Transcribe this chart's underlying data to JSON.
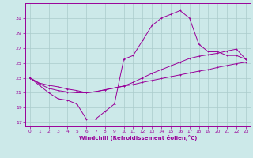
{
  "xlabel": "Windchill (Refroidissement éolien,°C)",
  "background_color": "#cce9e9",
  "line_color": "#990099",
  "grid_color": "#aacccc",
  "ylim": [
    16.5,
    33
  ],
  "xlim": [
    -0.5,
    23.5
  ],
  "yticks": [
    17,
    19,
    21,
    23,
    25,
    27,
    29,
    31
  ],
  "xticks": [
    0,
    1,
    2,
    3,
    4,
    5,
    6,
    7,
    8,
    9,
    10,
    11,
    12,
    13,
    14,
    15,
    16,
    17,
    18,
    19,
    20,
    21,
    22,
    23
  ],
  "line1_y": [
    23,
    22,
    21,
    20.2,
    20,
    19.5,
    17.5,
    17.5,
    18.5,
    19.5,
    25.5,
    26,
    28,
    30,
    31,
    31.5,
    32,
    31,
    27.5,
    26.5,
    26.5,
    26,
    26,
    25.5
  ],
  "line2_y": [
    23,
    22.2,
    21.6,
    21.3,
    21.1,
    21.0,
    21.0,
    21.15,
    21.4,
    21.65,
    21.9,
    22.1,
    22.4,
    22.65,
    22.9,
    23.15,
    23.4,
    23.65,
    23.9,
    24.1,
    24.4,
    24.65,
    24.9,
    25.1
  ],
  "line3_y": [
    23,
    22.3,
    22.0,
    21.8,
    21.5,
    21.3,
    21.0,
    21.15,
    21.4,
    21.65,
    21.9,
    22.4,
    23.0,
    23.6,
    24.1,
    24.6,
    25.1,
    25.6,
    25.9,
    26.1,
    26.3,
    26.6,
    26.85,
    25.5
  ]
}
